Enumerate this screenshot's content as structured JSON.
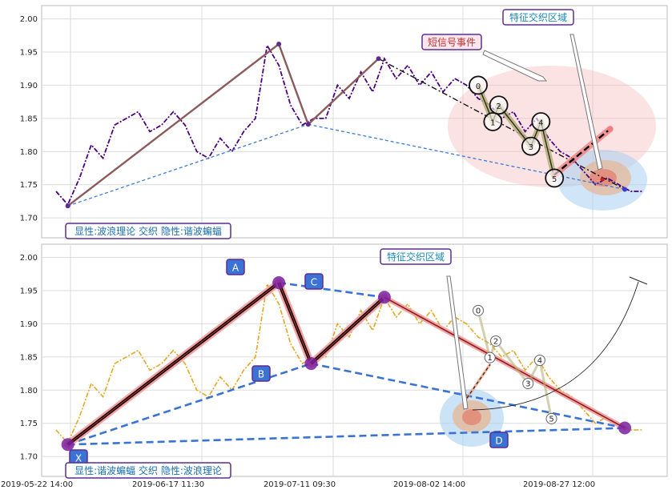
{
  "chart_data": [
    {
      "type": "line",
      "panel": "top",
      "ylim": [
        1.67,
        2.02
      ],
      "y_ticks": [
        "2.00",
        "1.95",
        "1.90",
        "1.85",
        "1.80",
        "1.75",
        "1.70"
      ],
      "grid": true,
      "series": [
        {
          "style": "dash-dot purple",
          "color": "#4b0082",
          "x": [
            0,
            2,
            4,
            6,
            8,
            10,
            12,
            14,
            16,
            18,
            20,
            22,
            24,
            26,
            28,
            30,
            32,
            34,
            36,
            38,
            40,
            42,
            44,
            46,
            48,
            50,
            52,
            54,
            56,
            58,
            60,
            62,
            64,
            66,
            68,
            70,
            72,
            74,
            76,
            78,
            80,
            82,
            84,
            86,
            88,
            90,
            92,
            94,
            96,
            98,
            100
          ],
          "y": [
            1.74,
            1.72,
            1.76,
            1.81,
            1.79,
            1.84,
            1.85,
            1.86,
            1.83,
            1.84,
            1.86,
            1.84,
            1.8,
            1.79,
            1.82,
            1.8,
            1.83,
            1.85,
            1.96,
            1.93,
            1.87,
            1.84,
            1.85,
            1.85,
            1.9,
            1.88,
            1.92,
            1.89,
            1.94,
            1.91,
            1.93,
            1.9,
            1.92,
            1.89,
            1.91,
            1.9,
            1.88,
            1.87,
            1.85,
            1.86,
            1.83,
            1.85,
            1.82,
            1.8,
            1.79,
            1.77,
            1.75,
            1.76,
            1.75,
            1.74,
            1.74
          ]
        }
      ],
      "waves_solid": [
        {
          "x": 2,
          "y": 1.718
        },
        {
          "x": 38,
          "y": 1.962
        },
        {
          "x": 43,
          "y": 1.841
        },
        {
          "x": 55,
          "y": 1.94
        }
      ],
      "trend_dashed": [
        {
          "x": 2,
          "y": 1.718
        },
        {
          "x": 43,
          "y": 1.841
        }
      ],
      "trend_dashdot": [
        {
          "x": 55,
          "y": 1.94
        },
        {
          "x": 97,
          "y": 1.743
        }
      ],
      "projection_dashed": [
        {
          "x": 43,
          "y": 1.841
        },
        {
          "x": 97,
          "y": 1.743
        }
      ],
      "wave_count": [
        {
          "label": "0",
          "x": 72,
          "y": 1.9
        },
        {
          "label": "1",
          "x": 74.5,
          "y": 1.845
        },
        {
          "label": "2",
          "x": 75.5,
          "y": 1.87
        },
        {
          "label": "3",
          "x": 81,
          "y": 1.808
        },
        {
          "label": "4",
          "x": 82.7,
          "y": 1.845
        },
        {
          "label": "5",
          "x": 85,
          "y": 1.76
        }
      ],
      "projection_bar": [
        {
          "x": 85,
          "y": 1.765
        },
        {
          "x": 94.5,
          "y": 1.834
        }
      ],
      "annotations": [
        "短信号事件",
        "特征交织区域"
      ],
      "footer_label": "显性:波浪理论 交织 隐性:谐波蝙蝠"
    },
    {
      "type": "line",
      "panel": "bottom",
      "ylim": [
        1.67,
        2.02
      ],
      "y_ticks": [
        "2.00",
        "1.95",
        "1.90",
        "1.85",
        "1.80",
        "1.75",
        "1.70"
      ],
      "x_ticks": [
        "2019-05-22 14:00",
        "2019-06-17 11:30",
        "2019-07-11 09:30",
        "2019-08-02 14:00",
        "2019-08-27 12:00"
      ],
      "grid": true,
      "series": [
        {
          "style": "dash-dot yellow",
          "color": "#e6a820",
          "x": [
            0,
            2,
            4,
            6,
            8,
            10,
            12,
            14,
            16,
            18,
            20,
            22,
            24,
            26,
            28,
            30,
            32,
            34,
            36,
            38,
            40,
            42,
            44,
            46,
            48,
            50,
            52,
            54,
            56,
            58,
            60,
            62,
            64,
            66,
            68,
            70,
            72,
            74,
            76,
            78,
            80,
            82,
            84,
            86,
            88,
            90,
            92,
            94,
            96,
            98,
            100
          ],
          "y": [
            1.74,
            1.72,
            1.76,
            1.81,
            1.79,
            1.84,
            1.85,
            1.86,
            1.83,
            1.84,
            1.86,
            1.84,
            1.8,
            1.79,
            1.82,
            1.8,
            1.83,
            1.85,
            1.96,
            1.93,
            1.87,
            1.84,
            1.85,
            1.85,
            1.9,
            1.88,
            1.92,
            1.89,
            1.94,
            1.91,
            1.93,
            1.9,
            1.92,
            1.89,
            1.91,
            1.9,
            1.88,
            1.87,
            1.85,
            1.86,
            1.83,
            1.85,
            1.82,
            1.8,
            1.79,
            1.77,
            1.75,
            1.76,
            1.75,
            1.74,
            1.74
          ]
        }
      ],
      "harmonic_points": [
        {
          "label": "X",
          "x": 2,
          "y": 1.718
        },
        {
          "label": "A",
          "x": 38,
          "y": 1.962
        },
        {
          "label": "B",
          "x": 43.5,
          "y": 1.84
        },
        {
          "label": "C",
          "x": 56,
          "y": 1.94
        },
        {
          "label": "D",
          "x": 97,
          "y": 1.743
        }
      ],
      "wave_count": [
        {
          "label": "0",
          "x": 72,
          "y": 1.92
        },
        {
          "label": "1",
          "x": 74,
          "y": 1.849
        },
        {
          "label": "2",
          "x": 75,
          "y": 1.874
        },
        {
          "label": "3",
          "x": 80.5,
          "y": 1.81
        },
        {
          "label": "4",
          "x": 82.5,
          "y": 1.845
        },
        {
          "label": "5",
          "x": 84.5,
          "y": 1.757
        }
      ],
      "annotations": [
        "特征交织区域"
      ],
      "footer_label": "显性:谐波蝙蝠 交织 隐性:波浪理论"
    }
  ]
}
